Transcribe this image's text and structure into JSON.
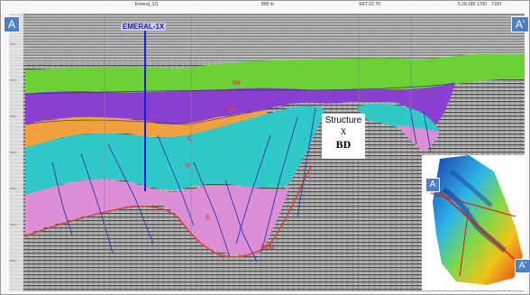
{
  "section": {
    "start_label": "A",
    "end_label": "A'",
    "well_name": "EMERAL-1X",
    "top_ticks": [
      "Emeral_1/1",
      "800 m",
      "SRT-22 70",
      "5,18,180 1700",
      "7100"
    ]
  },
  "horizons": [
    {
      "id": "bii",
      "label": "BII",
      "color": "#d94848"
    },
    {
      "id": "bi",
      "label": "BI",
      "color": "#d94848"
    },
    {
      "id": "c",
      "label": "C",
      "color": "#d94848"
    },
    {
      "id": "d",
      "label": "D",
      "color": "#d94848"
    },
    {
      "id": "e",
      "label": "E",
      "color": "#d94848"
    },
    {
      "id": "bsm",
      "label": "BSM",
      "color": "#d94848"
    }
  ],
  "structure_box": {
    "line1": "Structure",
    "line2": "X",
    "line3": "BD"
  },
  "inset_map": {
    "start_label": "A",
    "end_label": "A'"
  },
  "colors": {
    "green_layer": "#6cd135",
    "purple_layer": "#8a3fd1",
    "orange_layer": "#f0a03c",
    "cyan_layer": "#2fc9c9",
    "pink_layer": "#dc8ed6",
    "blue_marker": "#4f7fc6"
  }
}
